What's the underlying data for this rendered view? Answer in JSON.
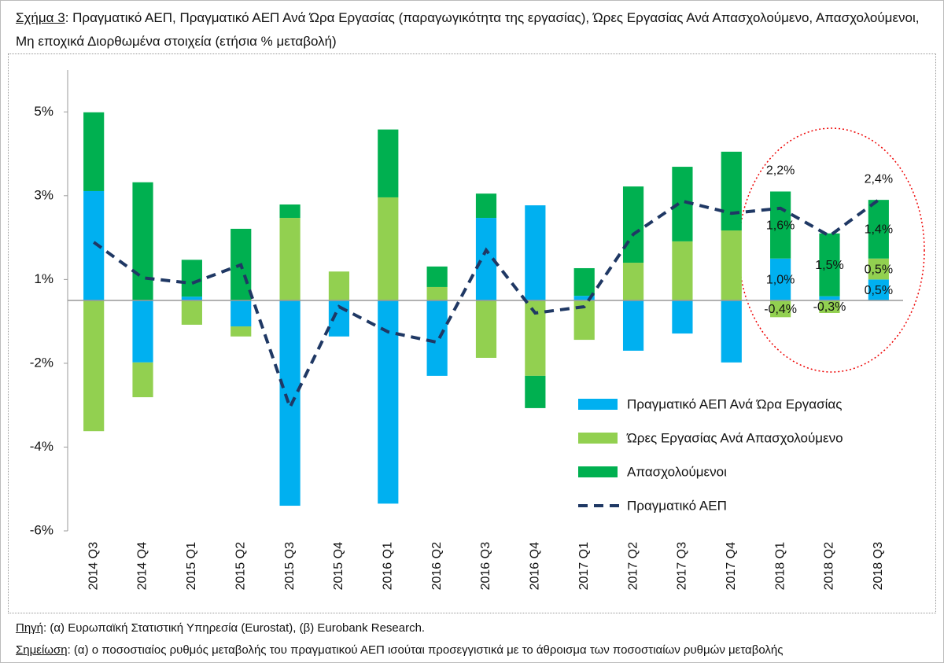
{
  "chart_data": {
    "type": "bar",
    "stacked": true,
    "title_label": "Σχήμα 3",
    "title": ": Πραγματικό ΑΕΠ, Πραγματικό ΑΕΠ Ανά Ώρα Εργασίας (παραγωγικότητα της εργασίας), Ώρες Εργασίας Ανά Απασχολούμενο, Απασχολούμενοι, Μη εποχικά Διορθωμένα στοιχεία (ετήσια % μεταβολή)",
    "source_label": "Πηγή",
    "source": ": (α) Ευρωπαϊκή Στατιστική Υπηρεσία (Eurostat), (β) Eurobank Research.",
    "note_label": "Σημείωση",
    "note": ": (α) ο ποσοστιαίος ρυθμός μεταβολής του πραγματικού ΑΕΠ ισούται προσεγγιστικά με το άθροισμα των ποσοστιαίων ρυθμών μεταβολής",
    "categories": [
      "2014 Q3",
      "2014 Q4",
      "2015 Q1",
      "2015 Q2",
      "2015 Q3",
      "2015 Q4",
      "2016 Q1",
      "2016 Q2",
      "2016 Q3",
      "2016 Q4",
      "2017 Q1",
      "2017 Q2",
      "2017 Q3",
      "2017 Q4",
      "2018 Q1",
      "2018 Q2",
      "2018 Q3"
    ],
    "ylim": [
      -5.5,
      5.5
    ],
    "yticks": [
      {
        "value": 4.5,
        "label": "5%"
      },
      {
        "value": 2.5,
        "label": "3%"
      },
      {
        "value": 0.5,
        "label": "1%"
      },
      {
        "value": -1.5,
        "label": "-2%"
      },
      {
        "value": -3.5,
        "label": "-4%"
      },
      {
        "value": -5.5,
        "label": "-6%"
      }
    ],
    "legend": "right",
    "series": [
      {
        "name": "Πραγματικό ΑΕΠ Ανά Ώρα Εργασίας",
        "type": "bar",
        "color": "#00b0f0",
        "values": [
          2.61,
          -1.48,
          0.09,
          -0.62,
          -4.9,
          -0.86,
          -4.85,
          -1.8,
          1.97,
          2.27,
          0.11,
          -1.2,
          -0.79,
          -1.48,
          1.0,
          0.1,
          0.5
        ],
        "value_labels": [
          null,
          null,
          null,
          null,
          null,
          null,
          null,
          null,
          null,
          null,
          null,
          null,
          null,
          null,
          "1,0%",
          null,
          "0,5%"
        ]
      },
      {
        "name": "Ώρες Εργασίας Ανά Απασχολούμενο",
        "type": "bar",
        "color": "#92d050",
        "values": [
          -3.12,
          -0.83,
          -0.58,
          -0.24,
          1.97,
          0.69,
          2.46,
          0.32,
          -1.37,
          -1.8,
          -0.94,
          0.9,
          1.41,
          1.67,
          -0.4,
          -0.3,
          0.5
        ],
        "value_labels": [
          null,
          null,
          null,
          null,
          null,
          null,
          null,
          null,
          null,
          null,
          null,
          null,
          null,
          null,
          "-0,4%",
          "-0,3%",
          "0,5%"
        ]
      },
      {
        "name": "Απασχολούμενοι",
        "type": "bar",
        "color": "#00b050",
        "values": [
          1.88,
          2.82,
          0.88,
          1.71,
          0.32,
          null,
          1.62,
          0.49,
          0.58,
          -0.77,
          0.66,
          1.82,
          1.78,
          1.88,
          1.6,
          1.5,
          1.4
        ],
        "value_labels": [
          null,
          null,
          null,
          null,
          null,
          null,
          null,
          null,
          null,
          null,
          null,
          null,
          null,
          null,
          "1,6%",
          "1,5%",
          "1,4%"
        ]
      },
      {
        "name": "Πραγματικό ΑΕΠ",
        "type": "line",
        "color": "#1f3864",
        "dashed": true,
        "values": [
          1.39,
          0.54,
          0.41,
          0.85,
          -2.55,
          -0.15,
          -0.75,
          -1.0,
          1.2,
          -0.3,
          -0.15,
          1.58,
          2.37,
          2.08,
          2.2,
          1.54,
          2.4
        ],
        "value_labels": [
          null,
          null,
          null,
          null,
          null,
          null,
          null,
          null,
          null,
          null,
          null,
          null,
          null,
          null,
          "2,2%",
          null,
          "2,4%"
        ]
      }
    ]
  }
}
